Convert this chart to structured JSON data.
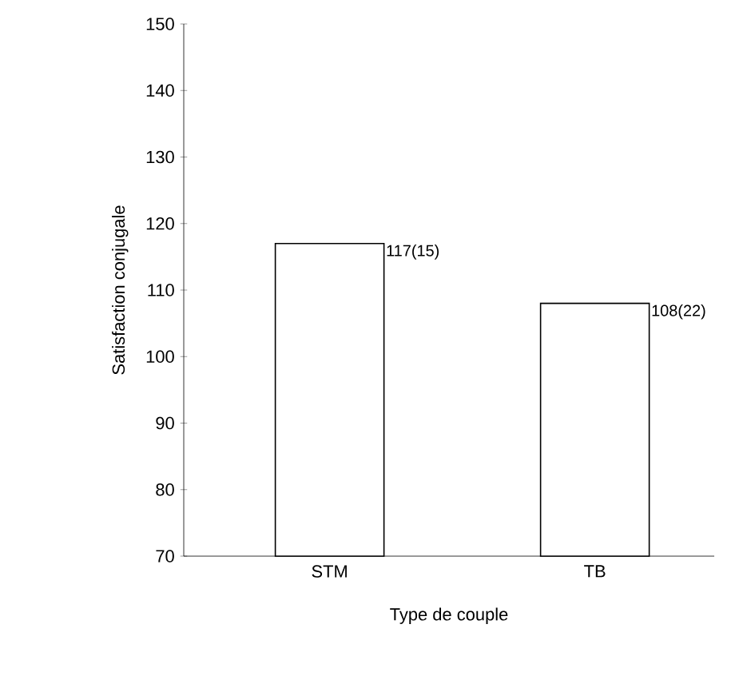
{
  "chart_data": {
    "type": "bar",
    "xlabel": "Type de couple",
    "ylabel": "Satisfaction conjugale",
    "categories": [
      "STM",
      "TB"
    ],
    "values": [
      117,
      108
    ],
    "annotations": [
      "117(15)",
      "108(22)"
    ],
    "color": "#ffffff",
    "ylim": [
      70,
      150
    ],
    "yticks": [
      70,
      80,
      90,
      100,
      110,
      120,
      130,
      140,
      150
    ],
    "grid": false
  }
}
